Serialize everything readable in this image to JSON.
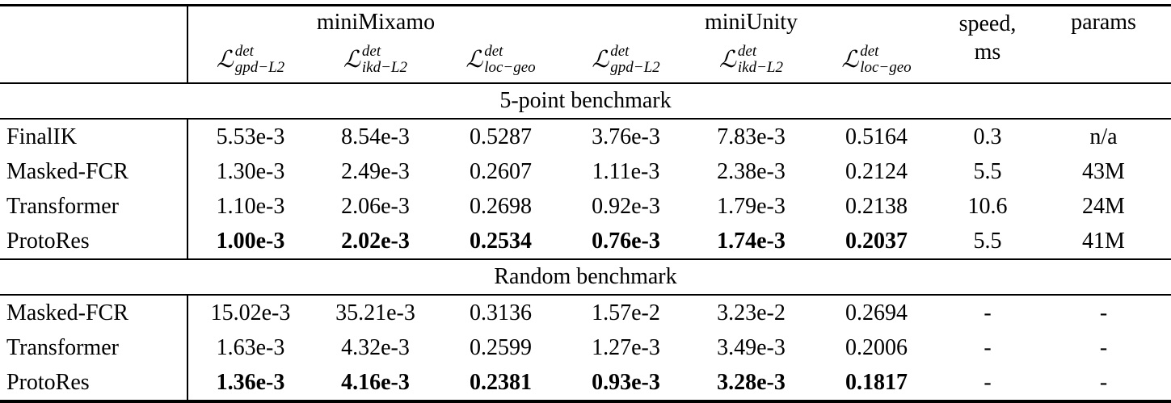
{
  "table": {
    "corner": "",
    "groups": [
      {
        "label": "miniMixamo"
      },
      {
        "label": "miniUnity"
      }
    ],
    "speed_label": "speed,",
    "speed_unit": "ms",
    "params_label": "params",
    "metrics": [
      {
        "cal": "ℒ",
        "sup": "det",
        "sub": "gpd−L2"
      },
      {
        "cal": "ℒ",
        "sup": "det",
        "sub": "ikd−L2"
      },
      {
        "cal": "ℒ",
        "sup": "det",
        "sub": "loc−geo"
      },
      {
        "cal": "ℒ",
        "sup": "det",
        "sub": "gpd−L2"
      },
      {
        "cal": "ℒ",
        "sup": "det",
        "sub": "ikd−L2"
      },
      {
        "cal": "ℒ",
        "sup": "det",
        "sub": "loc−geo"
      }
    ],
    "sections": [
      {
        "title": "5-point benchmark",
        "rows": [
          {
            "method": "FinalIK",
            "values": [
              "5.53e-3",
              "8.54e-3",
              "0.5287",
              "3.76e-3",
              "7.83e-3",
              "0.5164",
              "0.3",
              "n/a"
            ]
          },
          {
            "method": "Masked-FCR",
            "values": [
              "1.30e-3",
              "2.49e-3",
              "0.2607",
              "1.11e-3",
              "2.38e-3",
              "0.2124",
              "5.5",
              "43M"
            ]
          },
          {
            "method": "Transformer",
            "values": [
              "1.10e-3",
              "2.06e-3",
              "0.2698",
              "0.92e-3",
              "1.79e-3",
              "0.2138",
              "10.6",
              "24M"
            ]
          },
          {
            "method": "ProtoRes",
            "values": [
              "1.00e-3",
              "2.02e-3",
              "0.2534",
              "0.76e-3",
              "1.74e-3",
              "0.2037",
              "5.5",
              "41M"
            ]
          }
        ]
      },
      {
        "title": "Random benchmark",
        "rows": [
          {
            "method": "Masked-FCR",
            "values": [
              "15.02e-3",
              "35.21e-3",
              "0.3136",
              "1.57e-2",
              "3.23e-2",
              "0.2694",
              "-",
              "-"
            ]
          },
          {
            "method": "Transformer",
            "values": [
              "1.63e-3",
              "4.32e-3",
              "0.2599",
              "1.27e-3",
              "3.49e-3",
              "0.2006",
              "-",
              "-"
            ]
          },
          {
            "method": "ProtoRes",
            "values": [
              "1.36e-3",
              "4.16e-3",
              "0.2381",
              "0.93e-3",
              "3.28e-3",
              "0.1817",
              "-",
              "-"
            ]
          }
        ]
      }
    ]
  }
}
